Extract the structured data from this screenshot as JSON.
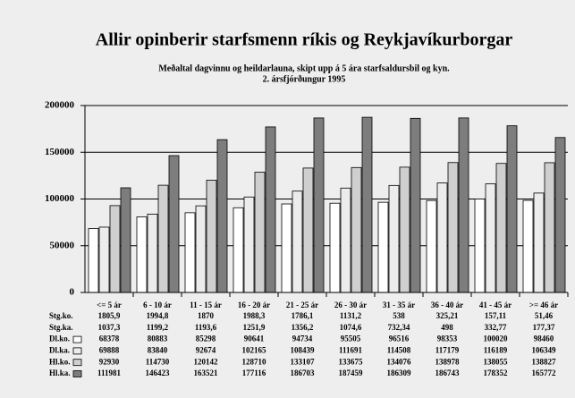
{
  "chart_data": {
    "type": "bar",
    "title": "Allir opinberir starfsmenn ríkis og Reykjavíkurborgar",
    "subtitle": [
      "Meðaltal dagvinnu og heildarlauna, skipt upp á 5 ára starfsaldursbil og kyn.",
      "2. ársfjórðungur 1995"
    ],
    "categories": [
      "<= 5 ár",
      "6 - 10 ár",
      "11 - 15 ár",
      "16 - 20 ár",
      "21 - 25 ár",
      "26 - 30 ár",
      "31 - 35 ár",
      "36 - 40 ár",
      "41 - 45 ár",
      ">= 46 ár"
    ],
    "table_rows": [
      {
        "name": "Stg.ko.",
        "values": [
          "1805,9",
          "1994,8",
          "1870",
          "1988,3",
          "1786,1",
          "1131,2",
          "538",
          "325,21",
          "157,11",
          "51,46"
        ]
      },
      {
        "name": "Stg.ka.",
        "values": [
          "1037,3",
          "1199,2",
          "1193,6",
          "1251,9",
          "1356,2",
          "1074,6",
          "732,34",
          "498",
          "332,77",
          "177,37"
        ]
      }
    ],
    "series": [
      {
        "name": "Dl.ko.",
        "color": "#ffffff",
        "values": [
          68378,
          80883,
          85298,
          90641,
          94734,
          95505,
          96516,
          98353,
          100020,
          98460
        ]
      },
      {
        "name": "Dl.ka.",
        "color": "#ececec",
        "values": [
          69888,
          83840,
          92674,
          102165,
          108439,
          111691,
          114508,
          117179,
          116189,
          106349
        ]
      },
      {
        "name": "Hl.ko.",
        "color": "#cfcfcf",
        "values": [
          92930,
          114730,
          120142,
          128710,
          133107,
          133675,
          134076,
          138978,
          138055,
          138827
        ]
      },
      {
        "name": "Hl.ka.",
        "color": "#7d7d7d",
        "values": [
          111981,
          146423,
          163521,
          177116,
          186703,
          187459,
          186309,
          186743,
          178352,
          165772
        ]
      }
    ],
    "ylim": [
      0,
      200000
    ],
    "yticks": [
      0,
      50000,
      100000,
      150000,
      200000
    ],
    "grid": true
  }
}
